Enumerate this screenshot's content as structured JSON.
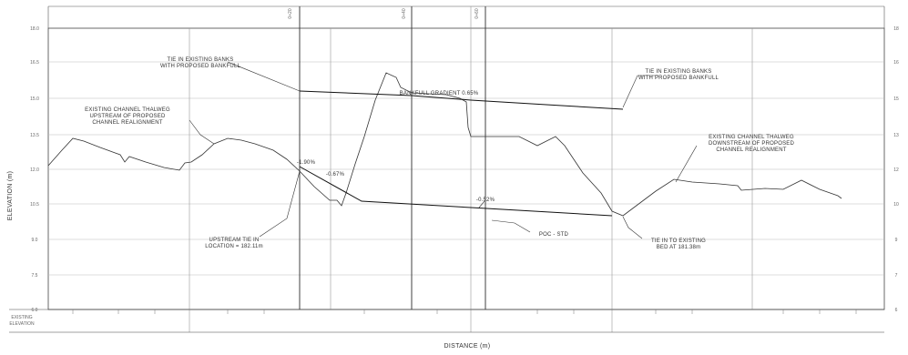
{
  "axes": {
    "y_label": "ELEVATION (m)",
    "x_label": "DISTANCE (m)",
    "y_ticks_left": [
      "18.0",
      "16.5",
      "15.0",
      "13.5",
      "12.0",
      "10.5",
      "9.0",
      "7.5",
      "6.0"
    ],
    "y_ticks_right": [
      "18",
      "16",
      "15",
      "13",
      "12",
      "10",
      "9",
      "7",
      "6"
    ],
    "bottom_left_labels": [
      "EXISTING",
      "ELEVATION"
    ]
  },
  "annotations": {
    "tie_in_banks_left": [
      "TIE IN EXISTING BANKS",
      "WITH PROPOSED BANKFULL"
    ],
    "tie_in_banks_right": [
      "TIE IN EXISTING BANKS",
      "WITH PROPOSED BANKFULL"
    ],
    "bankfull_gradient": "BANKFULL GRADIENT 0.65%",
    "existing_thalweg_upstream": [
      "EXISTING CHANNEL THALWEG",
      "UPSTREAM OF PROPOSED",
      "CHANNEL REALIGNMENT"
    ],
    "existing_thalweg_downstream": [
      "EXISTING CHANNEL THALWEG",
      "DOWNSTREAM OF PROPOSED",
      "CHANNEL REALIGNMENT"
    ],
    "grade_1": "-1.90%",
    "grade_2": "-0.67%",
    "grade_3": "-0.52%",
    "upstream_tie_in": [
      "UPSTREAM TIE IN",
      "LOCATION = 182.11m"
    ],
    "poc": "POC - STD",
    "downstream_tie_in": [
      "TIE IN TO EXISTING",
      "BED AT 181.38m"
    ]
  },
  "section_marks": [
    "0+20",
    "0+40",
    "0+60"
  ]
}
